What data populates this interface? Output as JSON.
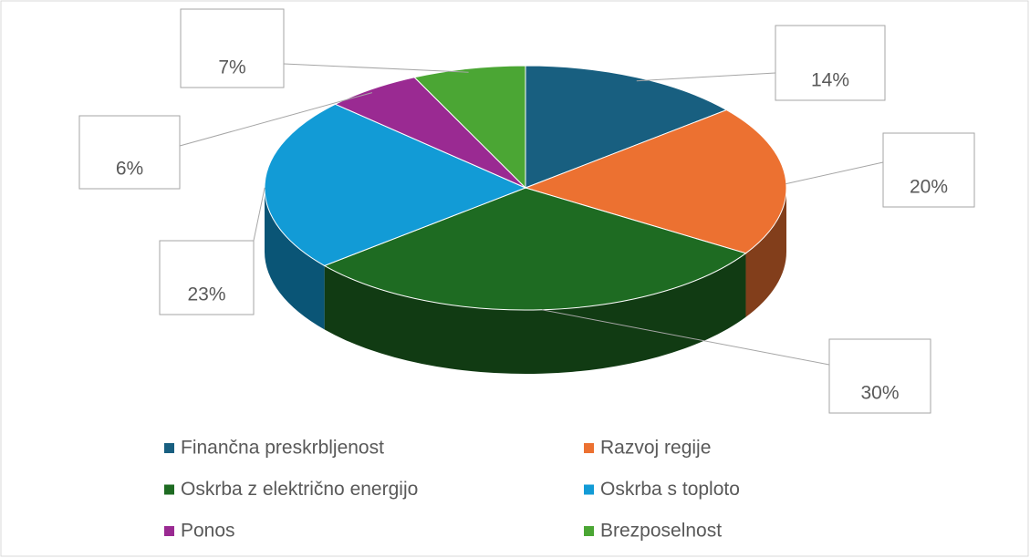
{
  "chart_data": {
    "type": "pie",
    "3d": true,
    "categories": [
      "Finančna preskrbljenost",
      "Razvoj regije",
      "Oskrba z električno energijo",
      "Oskrba s toploto",
      "Ponos",
      "Brezposelnost"
    ],
    "values": [
      14,
      20,
      30,
      23,
      6,
      7
    ],
    "value_labels": [
      "14%",
      "20%",
      "30%",
      "23%",
      "6%",
      "7%"
    ],
    "colors": [
      "#185f80",
      "#ec7131",
      "#1e6b22",
      "#129bd6",
      "#9a2a92",
      "#4ba634"
    ],
    "legend": "bottom"
  }
}
